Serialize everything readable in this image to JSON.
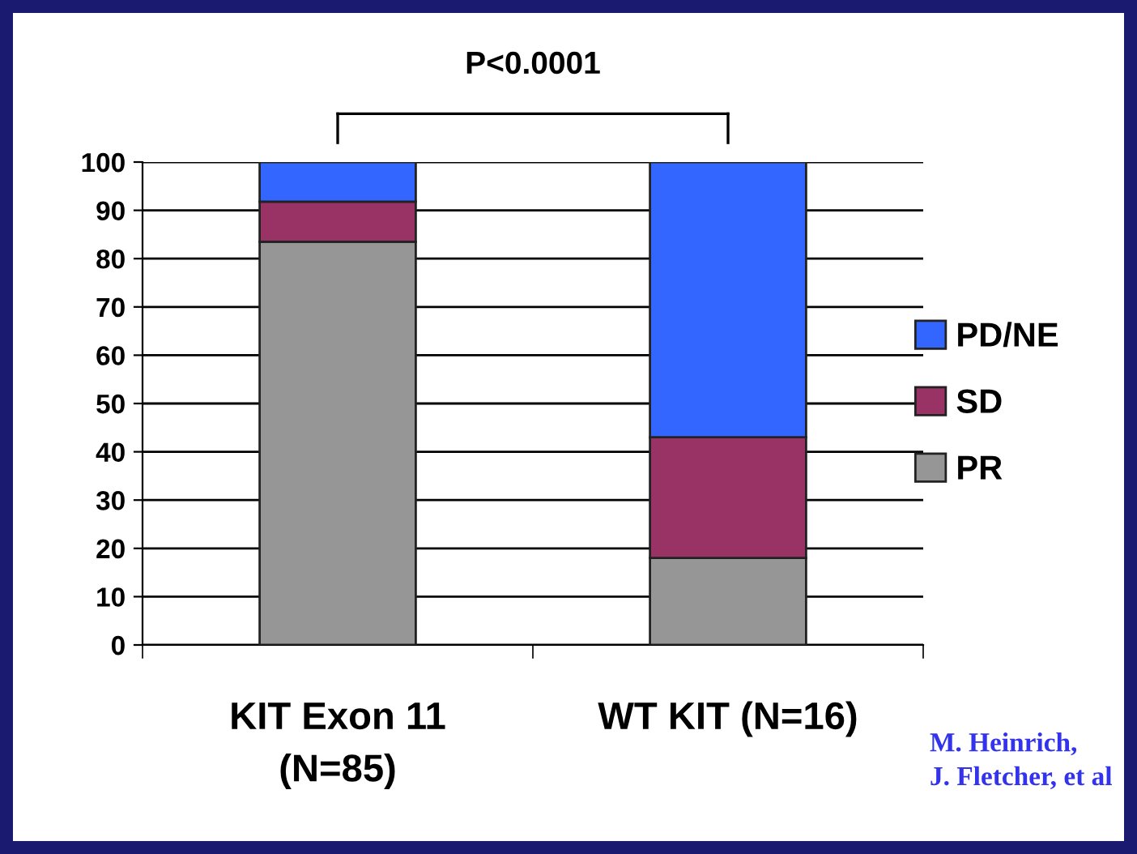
{
  "chart_data": {
    "type": "bar",
    "stacked": true,
    "categories": [
      "KIT Exon 11\n(N=85)",
      "WT KIT (N=16)"
    ],
    "series": [
      {
        "name": "PR",
        "color": "#969696",
        "values": [
          83.5,
          18
        ]
      },
      {
        "name": "SD",
        "color": "#993366",
        "values": [
          8.3,
          25
        ]
      },
      {
        "name": "PD/NE",
        "color": "#3366ff",
        "values": [
          8.2,
          57
        ]
      }
    ],
    "ylim": [
      0,
      100
    ],
    "yticks": [
      0,
      10,
      20,
      30,
      40,
      50,
      60,
      70,
      80,
      90,
      100
    ],
    "grid": "y",
    "legend": "right",
    "annotations": [
      "P<0.0001",
      "M. Heinrich,\nJ. Fletcher, et al"
    ]
  }
}
